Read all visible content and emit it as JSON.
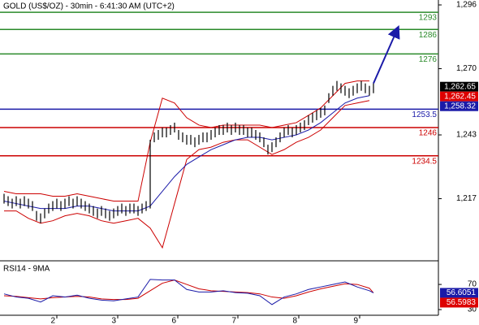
{
  "chart_data": [
    {
      "type": "hl-bars",
      "title": "GOLD (US$/OZ) - 30min - 6:41:30 AM (UTC+2)",
      "xlim": [
        -1,
        107
      ],
      "ylim": [
        1192,
        1298
      ],
      "yticks": [
        {
          "value": 1296,
          "label": "1,296"
        },
        {
          "value": 1270,
          "label": "1,270"
        },
        {
          "value": 1243,
          "label": "1,243"
        },
        {
          "value": 1217,
          "label": "1,217"
        }
      ],
      "bars": {
        "color": "#000000",
        "x": [
          0,
          1,
          2,
          3,
          4,
          5,
          6,
          7,
          8,
          9,
          10,
          11,
          12,
          13,
          14,
          15,
          16,
          17,
          18,
          19,
          20,
          21,
          22,
          23,
          24,
          25,
          26,
          27,
          28,
          29,
          30,
          31,
          32,
          33,
          34,
          35,
          36,
          37,
          38,
          39,
          40,
          41,
          42,
          43,
          44,
          45,
          46,
          47,
          48,
          49,
          50,
          51,
          52,
          53,
          54,
          55,
          56,
          57,
          58,
          59,
          60,
          61,
          62,
          63,
          64,
          65,
          66,
          67,
          68,
          69,
          70,
          71,
          72,
          73,
          74,
          75,
          76,
          77,
          78,
          79,
          80,
          81,
          82,
          83,
          84,
          85,
          86,
          87,
          88,
          89,
          90,
          91
        ],
        "high": [
          1219,
          1218,
          1217,
          1218,
          1217,
          1218,
          1217,
          1216,
          1212,
          1211,
          1213,
          1215,
          1216,
          1217,
          1216,
          1217,
          1218,
          1217,
          1218,
          1217,
          1216,
          1215,
          1214,
          1213,
          1214,
          1213,
          1212,
          1213,
          1214,
          1215,
          1214,
          1215,
          1215,
          1214,
          1215,
          1216,
          1241,
          1244,
          1245,
          1246,
          1246,
          1247,
          1248,
          1245,
          1244,
          1243,
          1243,
          1242,
          1243,
          1244,
          1244,
          1245,
          1246,
          1247,
          1247,
          1248,
          1247,
          1248,
          1247,
          1247,
          1246,
          1246,
          1245,
          1244,
          1242,
          1239,
          1240,
          1242,
          1244,
          1246,
          1247,
          1246,
          1247,
          1248,
          1249,
          1251,
          1252,
          1253,
          1254,
          1255,
          1260,
          1263,
          1265,
          1264,
          1263,
          1262,
          1263,
          1264,
          1265,
          1264,
          1263,
          1264
        ],
        "low": [
          1215,
          1214,
          1213,
          1214,
          1213,
          1214,
          1213,
          1212,
          1208,
          1207,
          1209,
          1211,
          1212,
          1213,
          1212,
          1213,
          1214,
          1213,
          1214,
          1213,
          1212,
          1211,
          1210,
          1209,
          1210,
          1209,
          1208,
          1209,
          1210,
          1211,
          1210,
          1211,
          1211,
          1210,
          1211,
          1212,
          1213,
          1240,
          1241,
          1242,
          1242,
          1243,
          1244,
          1241,
          1240,
          1239,
          1239,
          1238,
          1239,
          1240,
          1240,
          1241,
          1242,
          1243,
          1243,
          1244,
          1243,
          1244,
          1243,
          1243,
          1242,
          1242,
          1241,
          1240,
          1238,
          1235,
          1236,
          1238,
          1240,
          1242,
          1243,
          1242,
          1243,
          1244,
          1245,
          1247,
          1248,
          1249,
          1250,
          1251,
          1256,
          1259,
          1261,
          1260,
          1259,
          1258,
          1259,
          1260,
          1261,
          1260,
          1259,
          1260
        ]
      },
      "overlays": [
        {
          "color": "#cc0000",
          "x": [
            0,
            3,
            6,
            9,
            12,
            15,
            18,
            21,
            24,
            27,
            30,
            33,
            36,
            39,
            42,
            45,
            48,
            51,
            54,
            57,
            60,
            63,
            66,
            69,
            72,
            75,
            78,
            81,
            84,
            87,
            90
          ],
          "values": [
            1220,
            1219,
            1219,
            1219,
            1218,
            1218,
            1219,
            1218,
            1217,
            1216,
            1216,
            1216,
            1240,
            1258,
            1256,
            1250,
            1247,
            1246,
            1247,
            1247,
            1247,
            1247,
            1246,
            1247,
            1248,
            1251,
            1254,
            1259,
            1264,
            1265,
            1265
          ]
        },
        {
          "color": "#cc0000",
          "x": [
            0,
            3,
            6,
            9,
            12,
            15,
            18,
            21,
            24,
            27,
            30,
            33,
            36,
            39,
            42,
            45,
            48,
            51,
            54,
            57,
            60,
            63,
            66,
            69,
            72,
            75,
            78,
            81,
            84,
            87,
            90
          ],
          "values": [
            1212,
            1212,
            1209,
            1207,
            1208,
            1210,
            1211,
            1210,
            1208,
            1207,
            1208,
            1209,
            1205,
            1197,
            1215,
            1233,
            1237,
            1238,
            1240,
            1241,
            1241,
            1238,
            1235,
            1237,
            1240,
            1242,
            1245,
            1250,
            1255,
            1256,
            1257
          ]
        },
        {
          "color": "#1a1aa8",
          "x": [
            0,
            3,
            6,
            9,
            12,
            15,
            18,
            21,
            24,
            27,
            30,
            33,
            36,
            39,
            42,
            45,
            48,
            51,
            54,
            57,
            60,
            63,
            66,
            69,
            72,
            75,
            78,
            81,
            84,
            87,
            90
          ],
          "values": [
            1216,
            1215,
            1214,
            1213,
            1213,
            1213,
            1214,
            1214,
            1213,
            1212,
            1212,
            1212,
            1214,
            1220,
            1226,
            1231,
            1234,
            1237,
            1239,
            1241,
            1242,
            1242,
            1241,
            1242,
            1243,
            1245,
            1248,
            1252,
            1256,
            1258,
            1259
          ]
        }
      ],
      "levels": [
        {
          "value": 1293,
          "color": "#2a8a2a"
        },
        {
          "value": 1286,
          "color": "#2a8a2a"
        },
        {
          "value": 1276,
          "color": "#2a8a2a"
        },
        {
          "value": 1253.5,
          "color": "#1a1aa8"
        },
        {
          "value": 1246,
          "color": "#cc0000"
        },
        {
          "value": 1234.5,
          "color": "#cc0000"
        }
      ],
      "price_labels": [
        {
          "value": 1262.65,
          "label": "1,262.65",
          "color": "#000000"
        },
        {
          "value": 1262.45,
          "label": "1,262.45",
          "color": "#dd0000"
        },
        {
          "value": 1258.32,
          "label": "1,258.32",
          "color": "#1a1aa8"
        }
      ]
    },
    {
      "type": "line",
      "title": "RSI14 - 9MA",
      "xlim": [
        -1,
        107
      ],
      "ylim": [
        21,
        105
      ],
      "yticks": [
        70,
        30
      ],
      "xticks": [
        {
          "value": 13,
          "label": "2"
        },
        {
          "value": 28,
          "label": "3"
        },
        {
          "value": 42.8,
          "label": "6"
        },
        {
          "value": 57.6,
          "label": "7"
        },
        {
          "value": 72.6,
          "label": "8"
        },
        {
          "value": 87.6,
          "label": "9"
        }
      ],
      "x": [
        0,
        3,
        6,
        9,
        12,
        15,
        18,
        21,
        24,
        27,
        30,
        33,
        36,
        39,
        42,
        45,
        48,
        51,
        54,
        57,
        60,
        63,
        66,
        69,
        72,
        75,
        78,
        81,
        84,
        87,
        90,
        91
      ],
      "series": [
        {
          "color": "#cc0000",
          "values": [
            52,
            51,
            49,
            47,
            49,
            50,
            51,
            50,
            47,
            46,
            46,
            48,
            60,
            72,
            77,
            70,
            63,
            60,
            59,
            58,
            57,
            55,
            50,
            48,
            52,
            58,
            63,
            67,
            71,
            70,
            64,
            56.5983
          ]
        },
        {
          "color": "#1a1aa8",
          "values": [
            55,
            50,
            48,
            42,
            52,
            50,
            53,
            48,
            45,
            44,
            47,
            50,
            78,
            77,
            77,
            62,
            58,
            58,
            60,
            57,
            56,
            52,
            38,
            50,
            55,
            62,
            66,
            70,
            74,
            66,
            60,
            56.6051
          ]
        }
      ],
      "price_labels": [
        {
          "value": 56.6051,
          "label": "56.6051",
          "color": "#1a1aa8"
        },
        {
          "value": 56.5983,
          "label": "56.5983",
          "color": "#dd0000"
        }
      ]
    }
  ]
}
